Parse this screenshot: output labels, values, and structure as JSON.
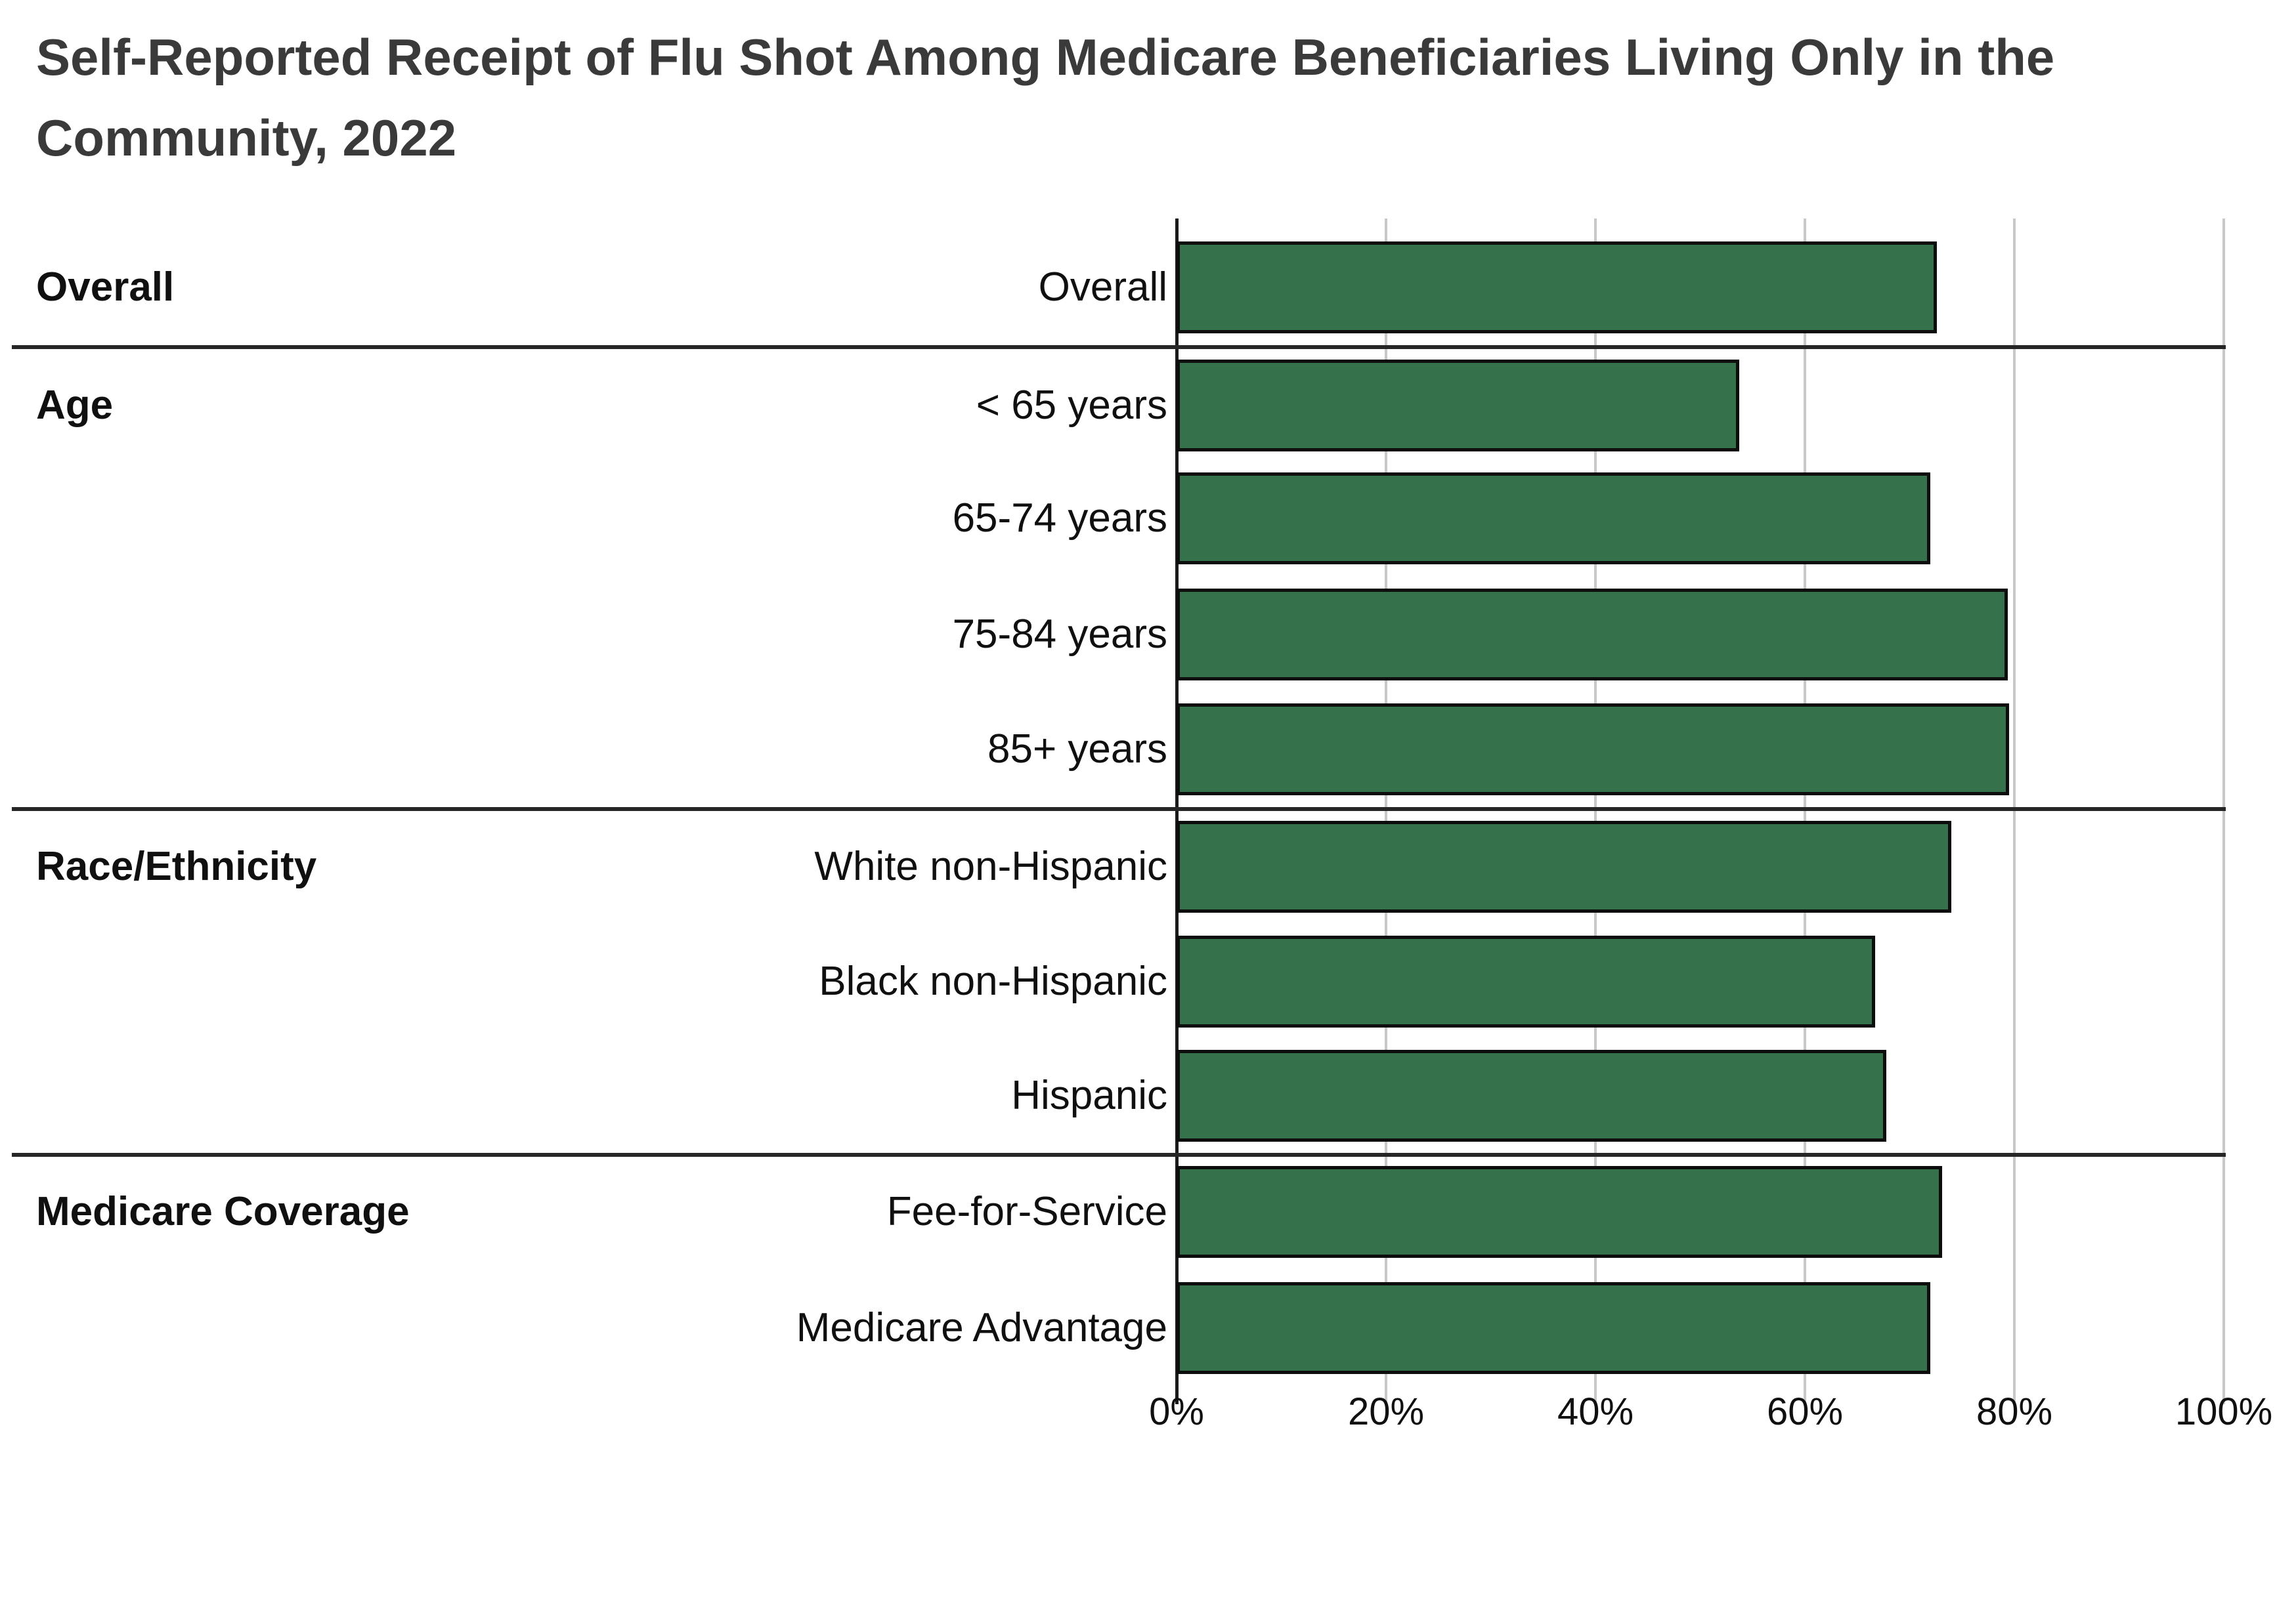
{
  "title": "Self-Reported Receipt of Flu Shot Among Medicare Beneficiaries Living Only in the Community, 2022",
  "title_lines": [
    "Self-Reported Receipt of Flu Shot Among Medicare Beneficiaries Living Only in the",
    "Community, 2022"
  ],
  "colors": {
    "bar_fill": "#35714A",
    "bar_border": "#0D0D0D",
    "gridline": "#C8C8C8",
    "axis_line": "#1A1A1A",
    "separator": "#262626",
    "title_text": "#3A3A3A",
    "label_text": "#101010",
    "background": "#FFFFFF"
  },
  "x_axis": {
    "ticks": [
      {
        "label": "0%",
        "value": 0
      },
      {
        "label": "20%",
        "value": 20
      },
      {
        "label": "40%",
        "value": 40
      },
      {
        "label": "60%",
        "value": 60
      },
      {
        "label": "80%",
        "value": 80
      },
      {
        "label": "100%",
        "value": 100
      }
    ],
    "max": 100
  },
  "chart_data": {
    "type": "bar",
    "orientation": "horizontal",
    "title": "Self-Reported Receipt of Flu Shot Among Medicare Beneficiaries Living Only in the Community, 2022",
    "xlabel": "",
    "ylabel": "",
    "xlim": [
      0,
      100
    ],
    "x_tick_labels": [
      "0%",
      "20%",
      "40%",
      "60%",
      "80%",
      "100%"
    ],
    "grid": true,
    "legend": false,
    "unit": "percent",
    "groups": [
      {
        "label": "Overall",
        "rows": [
          {
            "category": "Overall",
            "value": 72.6
          }
        ]
      },
      {
        "label": "Age",
        "rows": [
          {
            "category": "< 65 years",
            "value": 53.7
          },
          {
            "category": "65-74 years",
            "value": 72.0
          },
          {
            "category": "75-84 years",
            "value": 79.4
          },
          {
            "category": "85+ years",
            "value": 79.5
          }
        ]
      },
      {
        "label": "Race/Ethnicity",
        "rows": [
          {
            "category": "White non-Hispanic",
            "value": 74.0
          },
          {
            "category": "Black non-Hispanic",
            "value": 66.7
          },
          {
            "category": "Hispanic",
            "value": 67.8
          }
        ]
      },
      {
        "label": "Medicare Coverage",
        "rows": [
          {
            "category": "Fee-for-Service",
            "value": 73.1
          },
          {
            "category": "Medicare Advantage",
            "value": 72.0
          }
        ]
      }
    ]
  }
}
